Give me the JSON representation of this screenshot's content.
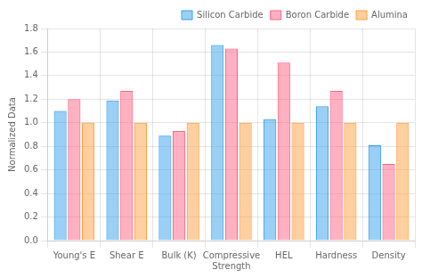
{
  "chart_data": {
    "type": "bar",
    "categories": [
      "Young's E",
      "Shear E",
      "Bulk (K)",
      "Compressive\nStrength",
      "HEL",
      "Hardness",
      "Density"
    ],
    "series": [
      {
        "name": "Silicon Carbide",
        "values": [
          1.1,
          1.19,
          0.89,
          1.66,
          1.03,
          1.14,
          0.81
        ]
      },
      {
        "name": "Boron Carbide",
        "values": [
          1.2,
          1.27,
          0.93,
          1.63,
          1.51,
          1.27,
          0.65
        ]
      },
      {
        "name": "Alumina",
        "values": [
          1.0,
          1.0,
          1.0,
          1.0,
          1.0,
          1.0,
          1.0
        ]
      }
    ],
    "ylabel": "Normalized Data",
    "ylim": [
      0,
      1.8
    ],
    "yticks": [
      {
        "value": 0,
        "label": "0.0"
      },
      0.2,
      0.4,
      0.6,
      0.8,
      {
        "value": 1,
        "label": "1.0"
      },
      1.2,
      1.4,
      1.6,
      1.8
    ],
    "grid": true,
    "legend": "upper right"
  }
}
